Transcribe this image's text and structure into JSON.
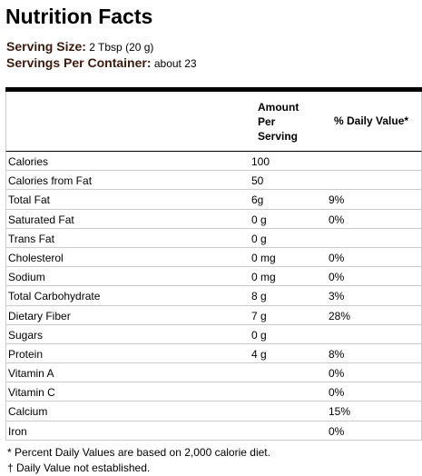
{
  "header": {
    "title": "Nutrition Facts",
    "serving_size": {
      "label": "Serving Size:",
      "value": "2 Tbsp (20 g)"
    },
    "servings_per_container": {
      "label": "Servings Per Container:",
      "value": "about 23"
    }
  },
  "table": {
    "columns": [
      "Amount Per Serving",
      "% Daily Value*"
    ],
    "rows": [
      {
        "name": "Calories",
        "amount": "100"
      },
      {
        "name": "Calories from Fat",
        "amount": "50"
      },
      {
        "name": "Total Fat",
        "amount": "6g",
        "daily_value": "9%"
      },
      {
        "name": "Saturated Fat",
        "amount": "0 g",
        "daily_value": "0%"
      },
      {
        "name": "Trans Fat",
        "amount": "0 g"
      },
      {
        "name": "Cholesterol",
        "amount": "0 mg",
        "daily_value": "0%"
      },
      {
        "name": "Sodium",
        "amount": "0 mg",
        "daily_value": "0%"
      },
      {
        "name": "Total Carbohydrate",
        "amount": "8 g",
        "daily_value": "3%"
      },
      {
        "name": "Dietary Fiber",
        "amount": "7 g",
        "daily_value": "28%"
      },
      {
        "name": "Sugars",
        "amount": "0 g"
      },
      {
        "name": "Protein",
        "amount": "4 g",
        "daily_value": "8%"
      },
      {
        "name": "Vitamin A",
        "daily_value": "0%"
      },
      {
        "name": "Vitamin C",
        "daily_value": "0%"
      },
      {
        "name": "Calcium",
        "daily_value": "15%"
      },
      {
        "name": "Iron",
        "daily_value": "0%"
      }
    ]
  },
  "footnotes": [
    "* Percent Daily Values are based on 2,000 calorie diet.",
    "† Daily Value not established."
  ]
}
